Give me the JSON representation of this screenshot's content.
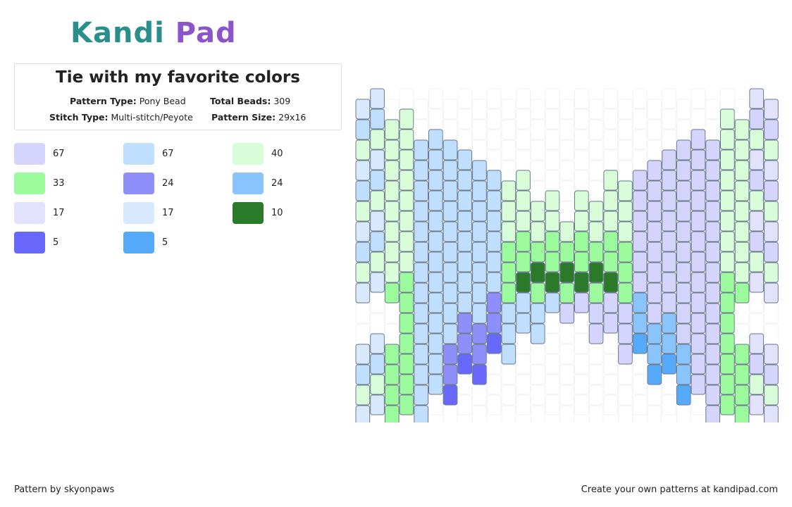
{
  "logo": "Kandi Pad",
  "card": {
    "title": "Tie with my favorite colors",
    "fields": [
      {
        "label": "Pattern Type:",
        "value": "Pony Bead"
      },
      {
        "label": "Total Beads:",
        "value": "309"
      },
      {
        "label": "Stitch Type:",
        "value": "Multi-stitch/Peyote"
      },
      {
        "label": "Pattern Size:",
        "value": "29x16"
      }
    ]
  },
  "palette": [
    {
      "color": "#d4d4fc",
      "count": "67"
    },
    {
      "color": "#c0dffe",
      "count": "67"
    },
    {
      "color": "#d9fdd9",
      "count": "40"
    },
    {
      "color": "#9cfb9c",
      "count": "33"
    },
    {
      "color": "#8f8ffc",
      "count": "24"
    },
    {
      "color": "#8ac4fc",
      "count": "24"
    },
    {
      "color": "#e2e2fc",
      "count": "17"
    },
    {
      "color": "#d8e9fe",
      "count": "17"
    },
    {
      "color": "#2a7a2a",
      "count": "10"
    },
    {
      "color": "#6868fc",
      "count": "5"
    },
    {
      "color": "#55aafc",
      "count": "5"
    }
  ],
  "footer": {
    "left": "Pattern by skyonpaws",
    "right": "Create your own patterns at kandipad.com"
  }
}
